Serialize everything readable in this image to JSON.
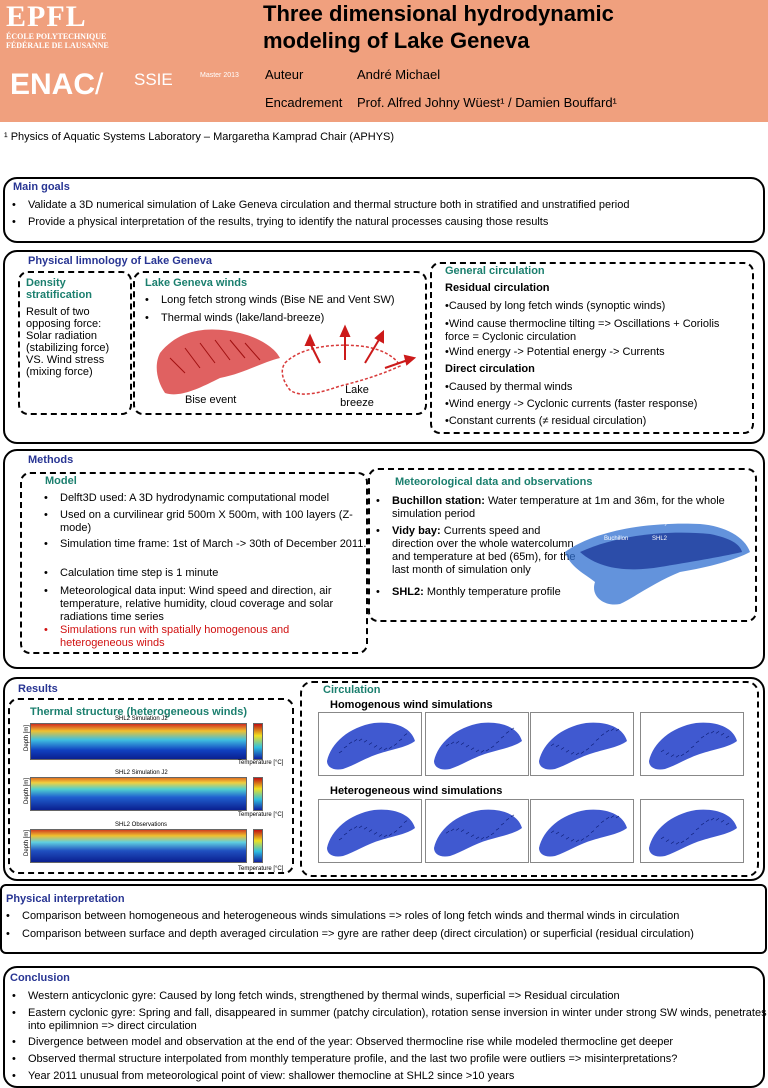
{
  "header": {
    "logo_text": "EPFL",
    "logo_sub1": "ÉCOLE POLYTECHNIQUE",
    "logo_sub2": "FÉDÉRALE DE LAUSANNE",
    "enac": "ENAC",
    "ssie": "SSIE",
    "master": "Master 2013",
    "title_line1": "Three dimensional hydrodynamic",
    "title_line2": "modeling of Lake Geneva",
    "author_label": "Auteur",
    "author": "André Michael",
    "supervision_label": "Encadrement",
    "supervision": "Prof. Alfred Johny Wüest¹ / Damien Bouffard¹",
    "affiliation": "¹ Physics of Aquatic Systems Laboratory – Margaretha Kamprad Chair (APHYS)"
  },
  "main_goals": {
    "title": "Main goals",
    "items": [
      "Validate a 3D numerical simulation of Lake Geneva circulation and thermal structure both in stratified and unstratified period",
      "Provide a physical interpretation of the results, trying to identify the natural processes causing those results"
    ]
  },
  "limnology": {
    "title": "Physical limnology of Lake Geneva",
    "density_title": "Density stratification",
    "density_text": "Result of two opposing force: Solar radiation (stabilizing force) VS. Wind stress (mixing force)",
    "winds_title": "Lake Geneva winds",
    "winds_items": [
      "Long fetch strong winds (Bise NE and Vent SW)",
      "Thermal winds (lake/land-breeze)"
    ],
    "bise_label": "Bise event",
    "breeze_label": "Lake breeze",
    "general_title": "General circulation",
    "residual_title": "Residual circulation",
    "residual_items": [
      "•Caused by long fetch winds (synoptic winds)",
      "•Wind cause thermocline tilting => Oscillations + Coriolis force = Cyclonic circulation",
      "•Wind energy -> Potential energy -> Currents"
    ],
    "direct_title": "Direct circulation",
    "direct_items": [
      "•Caused by thermal winds",
      "•Wind energy -> Cyclonic currents (faster response)",
      "•Constant currents (≠ residual circulation)"
    ]
  },
  "methods": {
    "title": "Methods",
    "model_title": "Model",
    "model_items": [
      "Delft3D used: A 3D hydrodynamic computational model",
      "Used on a curvilinear grid 500m X 500m, with 100 layers (Z-mode)",
      "Simulation time frame: 1st of March -> 30th of December 2011.",
      "Calculation time step is 1 minute",
      "Meteorological data input: Wind speed and direction, air temperature, relative humidity, cloud coverage and solar radiations time series"
    ],
    "model_red": "Simulations run with spatially homogenous and heterogeneous winds",
    "meteo_title": "Meteorological data and observations",
    "meteo_items": [
      {
        "bold": "Buchillon station:",
        "text": " Water temperature at 1m and 36m, for the whole simulation period"
      },
      {
        "bold": "Vidy bay:",
        "text": " Currents speed and direction over the whole watercolumn and temperature at bed (65m), for the last month of simulation only"
      },
      {
        "bold": "SHL2:",
        "text": " Monthly temperature profile"
      }
    ],
    "map_labels": {
      "vidy": "Vidy",
      "buchillon": "Buchillon",
      "shl2": "SHL2"
    }
  },
  "results": {
    "title": "Results",
    "thermal_title": "Thermal structure (heterogeneous winds)",
    "plots": [
      {
        "caption": "SHL2 Simulation J2",
        "axis": "Temperature [°C]",
        "ylabel": "Depth [m]"
      },
      {
        "caption": "SHL2 Simulation J2",
        "axis": "Temperature [°C]",
        "ylabel": "Depth [m]"
      },
      {
        "caption": "SHL2 Observations",
        "axis": "Temperature [°C]",
        "ylabel": "Depth [m]"
      }
    ],
    "circ_title": "Circulation",
    "homog_title": "Homogenous wind simulations",
    "hetero_title": "Heterogeneous wind simulations"
  },
  "interpretation": {
    "title": "Physical interpretation",
    "items": [
      "Comparison between homogeneous and heterogeneous winds simulations => roles of long fetch winds and thermal winds in circulation",
      "Comparison between surface and depth averaged circulation => gyre are rather deep (direct circulation) or superficial (residual circulation)"
    ]
  },
  "conclusion": {
    "title": "Conclusion",
    "items": [
      "Western anticyclonic gyre: Caused by long fetch winds, strengthened by thermal winds, superficial => Residual circulation",
      "Eastern cyclonic gyre: Spring and fall, disappeared in summer (patchy circulation), rotation sense inversion in winter under strong SW winds, penetrates into epilimnion => direct circulation",
      "Divergence between model and observation at the end of the year: Observed thermocline rise while modeled thermocline get deeper",
      "Observed thermal structure interpolated from monthly temperature profile, and the last two profile were outliers => misinterpretations?",
      "Year 2011 unusual from meteorological point of view: shallower themocline at SHL2 since >10 years"
    ]
  },
  "colors": {
    "header": "#f0a07e",
    "title_blue": "#283593",
    "title_green": "#1b7f6e",
    "red": "#d01010",
    "lake_blue": "#1e3cc8"
  }
}
